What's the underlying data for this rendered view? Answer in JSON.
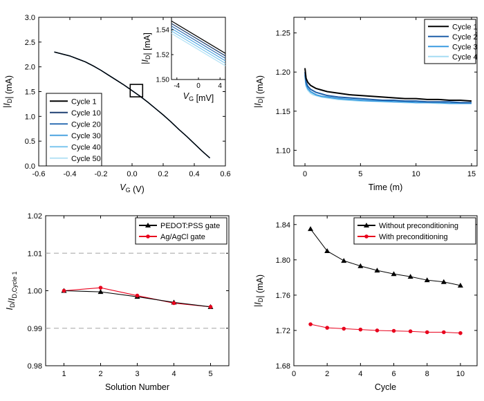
{
  "chart_data": [
    {
      "type": "line",
      "xlabel": "V_G (V)",
      "ylabel": "|I_D| (mA)",
      "xlim": [
        -0.6,
        0.6
      ],
      "ylim": [
        0.0,
        3.0
      ],
      "xticks": [
        "-0.6",
        "-0.4",
        "-0.2",
        "0.0",
        "0.2",
        "0.4",
        "0.6"
      ],
      "yticks": [
        "0.0",
        "0.5",
        "1.0",
        "1.5",
        "2.0",
        "2.5",
        "3.0"
      ],
      "legend_position": "lower-left",
      "x": [
        -0.5,
        -0.45,
        -0.4,
        -0.35,
        -0.3,
        -0.25,
        -0.2,
        -0.15,
        -0.1,
        -0.05,
        0.0,
        0.05,
        0.1,
        0.15,
        0.2,
        0.25,
        0.3,
        0.35,
        0.4,
        0.45,
        0.5
      ],
      "series": [
        {
          "name": "Cycle 1",
          "color": "#000000",
          "values": [
            2.3,
            2.26,
            2.22,
            2.16,
            2.1,
            2.02,
            1.93,
            1.83,
            1.73,
            1.63,
            1.52,
            1.41,
            1.29,
            1.16,
            1.03,
            0.89,
            0.74,
            0.6,
            0.45,
            0.3,
            0.16
          ]
        },
        {
          "name": "Cycle 10",
          "color": "#1c3f70",
          "values": [
            2.3,
            2.26,
            2.22,
            2.16,
            2.1,
            2.02,
            1.93,
            1.83,
            1.73,
            1.63,
            1.52,
            1.41,
            1.29,
            1.16,
            1.03,
            0.89,
            0.74,
            0.6,
            0.45,
            0.3,
            0.16
          ]
        },
        {
          "name": "Cycle 20",
          "color": "#2f6fb4",
          "values": [
            2.3,
            2.26,
            2.22,
            2.16,
            2.1,
            2.02,
            1.93,
            1.83,
            1.73,
            1.63,
            1.52,
            1.41,
            1.29,
            1.16,
            1.03,
            0.89,
            0.74,
            0.6,
            0.45,
            0.3,
            0.16
          ]
        },
        {
          "name": "Cycle 30",
          "color": "#4ba3e0",
          "values": [
            2.3,
            2.26,
            2.22,
            2.16,
            2.1,
            2.02,
            1.93,
            1.83,
            1.73,
            1.63,
            1.52,
            1.41,
            1.29,
            1.16,
            1.03,
            0.89,
            0.74,
            0.6,
            0.45,
            0.3,
            0.16
          ]
        },
        {
          "name": "Cycle 40",
          "color": "#7cc6ee",
          "values": [
            2.3,
            2.26,
            2.22,
            2.16,
            2.1,
            2.02,
            1.93,
            1.83,
            1.73,
            1.63,
            1.52,
            1.41,
            1.29,
            1.16,
            1.03,
            0.89,
            0.74,
            0.6,
            0.45,
            0.3,
            0.16
          ]
        },
        {
          "name": "Cycle 50",
          "color": "#b5e2f5",
          "values": [
            2.3,
            2.26,
            2.22,
            2.16,
            2.1,
            2.02,
            1.93,
            1.83,
            1.73,
            1.63,
            1.52,
            1.41,
            1.29,
            1.16,
            1.03,
            0.89,
            0.74,
            0.6,
            0.45,
            0.3,
            0.16
          ]
        }
      ],
      "inset": {
        "xlabel": "V_G [mV]",
        "ylabel": "|I_D| [mA]",
        "xlim": [
          -5,
          5
        ],
        "ylim": [
          1.5,
          1.55
        ],
        "xticks": [
          "-4",
          "0",
          "4"
        ],
        "yticks": [
          "1.50",
          "1.52",
          "1.54"
        ],
        "x": [
          -5,
          5
        ],
        "series": [
          {
            "name": "Cycle 1",
            "color": "#000000",
            "values": [
              1.547,
              1.521
            ]
          },
          {
            "name": "Cycle 10",
            "color": "#1c3f70",
            "values": [
              1.545,
              1.519
            ]
          },
          {
            "name": "Cycle 20",
            "color": "#2f6fb4",
            "values": [
              1.543,
              1.517
            ]
          },
          {
            "name": "Cycle 30",
            "color": "#4ba3e0",
            "values": [
              1.541,
              1.515
            ]
          },
          {
            "name": "Cycle 40",
            "color": "#7cc6ee",
            "values": [
              1.539,
              1.513
            ]
          },
          {
            "name": "Cycle 50",
            "color": "#b5e2f5",
            "values": [
              1.537,
              1.511
            ]
          }
        ]
      }
    },
    {
      "type": "line",
      "xlabel": "Time (m)",
      "ylabel": "|I_D| (mA)",
      "xlim": [
        -1,
        15.5
      ],
      "ylim": [
        1.08,
        1.27
      ],
      "xticks": [
        "0",
        "5",
        "10",
        "15"
      ],
      "yticks": [
        "1.10",
        "1.15",
        "1.20",
        "1.25"
      ],
      "legend_position": "top-right",
      "x": [
        0,
        0.1,
        0.25,
        0.5,
        0.75,
        1,
        1.5,
        2,
        3,
        4,
        5,
        6,
        7,
        8,
        9,
        10,
        11,
        12,
        13,
        14,
        15
      ],
      "series": [
        {
          "name": "Cycle 1",
          "color": "#000000",
          "values": [
            1.205,
            1.192,
            1.187,
            1.183,
            1.181,
            1.179,
            1.177,
            1.175,
            1.173,
            1.171,
            1.17,
            1.169,
            1.168,
            1.167,
            1.166,
            1.166,
            1.165,
            1.165,
            1.164,
            1.164,
            1.163
          ]
        },
        {
          "name": "Cycle 2",
          "color": "#1f5fa8",
          "values": [
            1.2,
            1.187,
            1.182,
            1.178,
            1.176,
            1.174,
            1.172,
            1.17,
            1.168,
            1.167,
            1.166,
            1.165,
            1.164,
            1.164,
            1.163,
            1.163,
            1.162,
            1.162,
            1.162,
            1.161,
            1.161
          ]
        },
        {
          "name": "Cycle 3",
          "color": "#3a9be0",
          "values": [
            1.197,
            1.184,
            1.179,
            1.175,
            1.173,
            1.171,
            1.169,
            1.168,
            1.166,
            1.165,
            1.164,
            1.163,
            1.163,
            1.162,
            1.162,
            1.161,
            1.161,
            1.161,
            1.16,
            1.16,
            1.16
          ]
        },
        {
          "name": "Cycle 4",
          "color": "#a6dcf3",
          "values": [
            1.195,
            1.182,
            1.177,
            1.173,
            1.171,
            1.17,
            1.168,
            1.167,
            1.165,
            1.164,
            1.163,
            1.163,
            1.162,
            1.162,
            1.161,
            1.161,
            1.161,
            1.16,
            1.16,
            1.16,
            1.16
          ]
        }
      ]
    },
    {
      "type": "line",
      "xlabel": "Solution Number",
      "ylabel": "I_D/I_D,Cycle 1",
      "xlim": [
        0.5,
        5.5
      ],
      "ylim": [
        0.98,
        1.02
      ],
      "xticks": [
        "1",
        "2",
        "3",
        "4",
        "5"
      ],
      "yticks": [
        "0.98",
        "0.99",
        "1.00",
        "1.01",
        "1.02"
      ],
      "reference_lines": [
        1.01,
        0.99
      ],
      "legend_position": "top-right",
      "x": [
        1,
        2,
        3,
        4,
        5
      ],
      "series": [
        {
          "name": "PEDOT:PSS gate",
          "color": "#000000",
          "marker": "triangle",
          "values": [
            1.0,
            0.9997,
            0.9984,
            0.9969,
            0.9957
          ]
        },
        {
          "name": "Ag/AgCl gate",
          "color": "#e8001c",
          "marker": "circle",
          "values": [
            1.0,
            1.0008,
            0.9987,
            0.9967,
            0.9957
          ]
        }
      ]
    },
    {
      "type": "line",
      "xlabel": "Cycle",
      "ylabel": "|I_D| (mA)",
      "xlim": [
        0,
        11
      ],
      "ylim": [
        1.68,
        1.85
      ],
      "xticks": [
        "0",
        "2",
        "4",
        "6",
        "8",
        "10"
      ],
      "yticks": [
        "1.68",
        "1.72",
        "1.76",
        "1.80",
        "1.84"
      ],
      "legend_position": "top-right",
      "x": [
        1,
        2,
        3,
        4,
        5,
        6,
        7,
        8,
        9,
        10
      ],
      "series": [
        {
          "name": "Without preconditioning",
          "color": "#000000",
          "marker": "triangle",
          "values": [
            1.835,
            1.81,
            1.799,
            1.793,
            1.788,
            1.784,
            1.781,
            1.777,
            1.775,
            1.771
          ]
        },
        {
          "name": "With preconditioning",
          "color": "#e8001c",
          "marker": "circle",
          "values": [
            1.727,
            1.723,
            1.722,
            1.721,
            1.72,
            1.7195,
            1.719,
            1.718,
            1.718,
            1.717
          ]
        }
      ]
    }
  ]
}
